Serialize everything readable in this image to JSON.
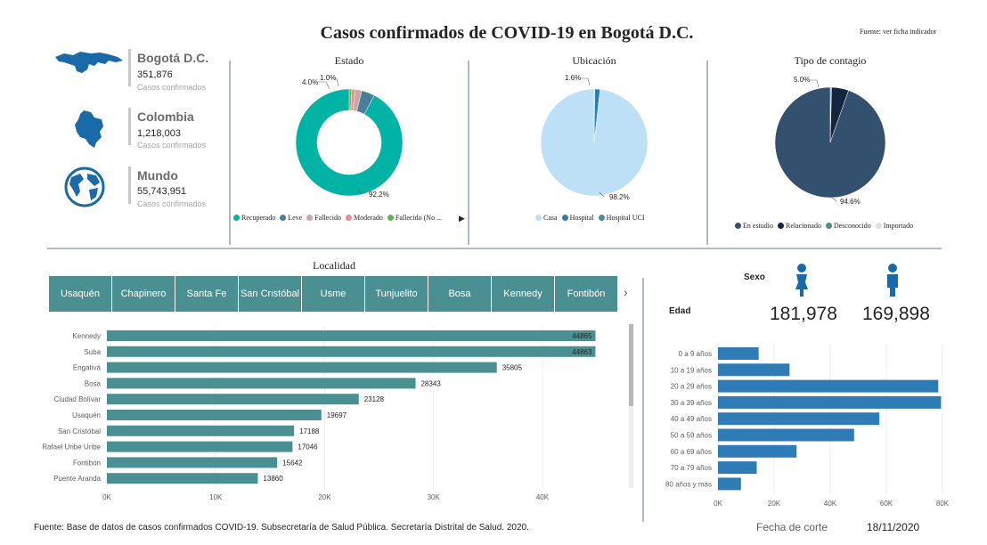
{
  "header": {
    "title": "Casos confirmados de COVID-19 en Bogotá D.C.",
    "source": "Fuente: ver ficha indicador"
  },
  "places": [
    {
      "name": "Bogotá D.C.",
      "value": "351,876",
      "sub": "Casos confirmados",
      "icon": "bogota-map-icon"
    },
    {
      "name": "Colombia",
      "value": "1,218,003",
      "sub": "Casos confirmados",
      "icon": "colombia-map-icon"
    },
    {
      "name": "Mundo",
      "value": "55,743,951",
      "sub": "Casos confirmados",
      "icon": "globe-icon"
    }
  ],
  "estado": {
    "title": "Estado",
    "labels": {
      "main": "92.2%",
      "a": "4.0%",
      "b": "1.0%"
    },
    "legend": [
      {
        "label": "Recuperado",
        "color": "#00b3a4"
      },
      {
        "label": "Leve",
        "color": "#4a7f9c"
      },
      {
        "label": "Fallecido",
        "color": "#c9a9a6"
      },
      {
        "label": "Moderado",
        "color": "#e88c8c"
      },
      {
        "label": "Fallecido (No ...",
        "color": "#6ab04c"
      }
    ]
  },
  "ubicacion": {
    "title": "Ubicación",
    "labels": {
      "main": "98.2%",
      "a": "1.6%"
    },
    "legend": [
      {
        "label": "Casa",
        "color": "#bde0f6"
      },
      {
        "label": "Hospital",
        "color": "#2e7bb6"
      },
      {
        "label": "Hospital UCI",
        "color": "#4a8f91"
      }
    ]
  },
  "contagio": {
    "title": "Tipo de contagio",
    "labels": {
      "main": "94.6%",
      "a": "5.0%"
    },
    "legend": [
      {
        "label": "En estudio",
        "color": "#34506f"
      },
      {
        "label": "Relacionado",
        "color": "#14253f"
      },
      {
        "label": "Desconocido",
        "color": "#4a8f91"
      },
      {
        "label": "Importado",
        "color": "#e0e0e0"
      }
    ]
  },
  "localidad": {
    "title": "Localidad",
    "tabs": [
      "Usaquén",
      "Chapinero",
      "Santa Fe",
      "San Cristóbal",
      "Usme",
      "Tunjuelito",
      "Bosa",
      "Kennedy",
      "Fontibón"
    ]
  },
  "sexo": {
    "title": "Sexo",
    "female": "181,978",
    "male": "169,898",
    "colors": {
      "female": "#1a6aa8",
      "male": "#1a6aa8"
    }
  },
  "edad_title": "Edad",
  "footer": {
    "source": "Fuente: Base de datos de casos confirmados COVID-19. Subsecretaría de Salud Pública. Secretaría Distrital de Salud. 2020.",
    "cut_label": "Fecha de corte",
    "cut_date": "18/11/2020"
  },
  "chart_data": [
    {
      "type": "pie",
      "title": "Estado",
      "categories": [
        "Recuperado",
        "Leve",
        "Fallecido",
        "Moderado",
        "Fallecido (No ..."
      ],
      "values": [
        92.2,
        4.0,
        2.0,
        1.0,
        0.8
      ],
      "style": "donut"
    },
    {
      "type": "pie",
      "title": "Ubicación",
      "categories": [
        "Casa",
        "Hospital",
        "Hospital UCI"
      ],
      "values": [
        98.2,
        1.6,
        0.2
      ]
    },
    {
      "type": "pie",
      "title": "Tipo de contagio",
      "categories": [
        "En estudio",
        "Relacionado",
        "Desconocido",
        "Importado"
      ],
      "values": [
        94.6,
        5.0,
        0.3,
        0.1
      ]
    },
    {
      "type": "bar",
      "orientation": "horizontal",
      "categories": [
        "Kennedy",
        "Suba",
        "Engativá",
        "Bosa",
        "Ciudad Bolívar",
        "Usaquén",
        "San Cristóbal",
        "Rafael Uribe Uribe",
        "Fontibón",
        "Puente Aranda"
      ],
      "values": [
        44865,
        44863,
        35805,
        28343,
        23128,
        19697,
        17188,
        17046,
        15642,
        13860
      ],
      "xticks": [
        "0K",
        "10K",
        "20K",
        "30K",
        "40K"
      ],
      "xlim": [
        0,
        45000
      ],
      "color": "#4a8f91"
    },
    {
      "type": "bar",
      "orientation": "horizontal",
      "title": "Edad",
      "categories": [
        "0 a 9 años",
        "10 a 19 años",
        "20 a 29 años",
        "30 a 39 años",
        "40 a 49 años",
        "50 a 59 años",
        "60 a 69 años",
        "70 a 79 años",
        "80 años y más"
      ],
      "values": [
        14500,
        25500,
        78500,
        79500,
        57500,
        48500,
        28000,
        13800,
        8200
      ],
      "xticks": [
        "0K",
        "20K",
        "40K",
        "60K",
        "80K"
      ],
      "xlim": [
        0,
        80000
      ],
      "color": "#2e7bb6"
    }
  ]
}
